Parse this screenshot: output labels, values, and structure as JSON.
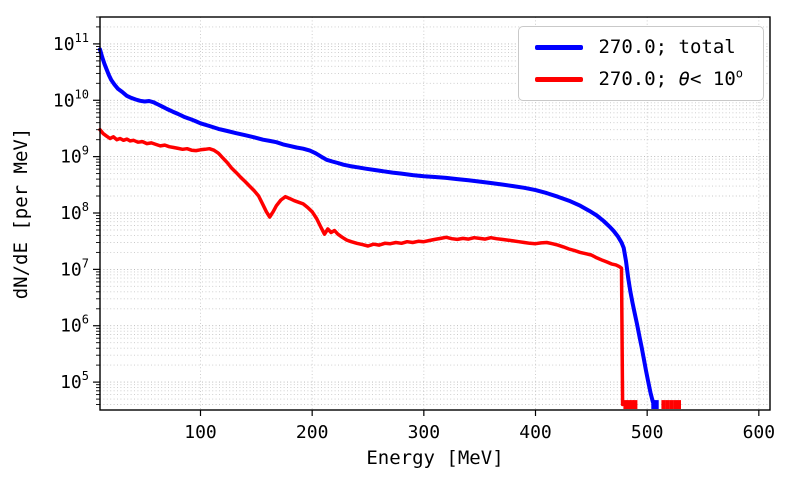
{
  "chart_data": {
    "type": "line",
    "title": "",
    "xlabel": "Energy [MeV]",
    "ylabel": "dN/dE [per MeV]",
    "yscale": "log",
    "xlim": [
      10,
      610
    ],
    "ylim": [
      32000.0,
      300000000000.0
    ],
    "x_ticks": [
      100,
      200,
      300,
      400,
      500,
      600
    ],
    "y_tick_exponents": [
      5,
      6,
      7,
      8,
      9,
      10,
      11
    ],
    "grid": {
      "which": "both",
      "style": "dotted",
      "color": "#c9c9c9"
    },
    "floor_spike_top": 48000.0,
    "legend": {
      "position": "upper right",
      "entries": [
        {
          "label": "270.0; total"
        },
        {
          "prefix": "270.0; ",
          "theta": "θ",
          "mid": "< 10",
          "sup": "o"
        }
      ]
    },
    "series": [
      {
        "name": "270.0; total",
        "color": "#0000ff",
        "linewidth": 4,
        "floor_spikes": [
          505.5,
          508.5
        ],
        "points": [
          [
            10,
            80000000000.0
          ],
          [
            12,
            58000000000.0
          ],
          [
            14,
            44000000000.0
          ],
          [
            16,
            35000000000.0
          ],
          [
            18,
            28000000000.0
          ],
          [
            20,
            23000000000.0
          ],
          [
            23,
            19000000000.0
          ],
          [
            26,
            16000000000.0
          ],
          [
            30,
            14000000000.0
          ],
          [
            34,
            12000000000.0
          ],
          [
            38,
            11000000000.0
          ],
          [
            42,
            10300000000.0
          ],
          [
            46,
            9800000000.0
          ],
          [
            50,
            9500000000.0
          ],
          [
            54,
            9700000000.0
          ],
          [
            58,
            9200000000.0
          ],
          [
            62,
            8400000000.0
          ],
          [
            66,
            7700000000.0
          ],
          [
            70,
            7000000000.0
          ],
          [
            75,
            6300000000.0
          ],
          [
            80,
            5700000000.0
          ],
          [
            85,
            5100000000.0
          ],
          [
            90,
            4700000000.0
          ],
          [
            95,
            4300000000.0
          ],
          [
            100,
            3900000000.0
          ],
          [
            108,
            3500000000.0
          ],
          [
            116,
            3100000000.0
          ],
          [
            124,
            2850000000.0
          ],
          [
            132,
            2600000000.0
          ],
          [
            140,
            2400000000.0
          ],
          [
            148,
            2200000000.0
          ],
          [
            156,
            2000000000.0
          ],
          [
            162,
            1900000000.0
          ],
          [
            168,
            1800000000.0
          ],
          [
            174,
            1650000000.0
          ],
          [
            180,
            1550000000.0
          ],
          [
            186,
            1450000000.0
          ],
          [
            192,
            1380000000.0
          ],
          [
            198,
            1280000000.0
          ],
          [
            203,
            1150000000.0
          ],
          [
            208,
            1000000000.0
          ],
          [
            213,
            880000000.0
          ],
          [
            218,
            820000000.0
          ],
          [
            223,
            770000000.0
          ],
          [
            228,
            720000000.0
          ],
          [
            234,
            680000000.0
          ],
          [
            240,
            650000000.0
          ],
          [
            248,
            610000000.0
          ],
          [
            256,
            580000000.0
          ],
          [
            264,
            550000000.0
          ],
          [
            272,
            520000000.0
          ],
          [
            280,
            500000000.0
          ],
          [
            290,
            470000000.0
          ],
          [
            300,
            450000000.0
          ],
          [
            310,
            435000000.0
          ],
          [
            320,
            420000000.0
          ],
          [
            330,
            400000000.0
          ],
          [
            340,
            380000000.0
          ],
          [
            350,
            360000000.0
          ],
          [
            360,
            340000000.0
          ],
          [
            370,
            320000000.0
          ],
          [
            380,
            300000000.0
          ],
          [
            390,
            280000000.0
          ],
          [
            400,
            255000000.0
          ],
          [
            410,
            225000000.0
          ],
          [
            420,
            195000000.0
          ],
          [
            430,
            165000000.0
          ],
          [
            440,
            135000000.0
          ],
          [
            448,
            110000000.0
          ],
          [
            455,
            90000000.0
          ],
          [
            461,
            72000000.0
          ],
          [
            466,
            58000000.0
          ],
          [
            470,
            48000000.0
          ],
          [
            474,
            38000000.0
          ],
          [
            477,
            30000000.0
          ],
          [
            479,
            24000000.0
          ],
          [
            481,
            14000000.0
          ],
          [
            483,
            7000000.0
          ],
          [
            485,
            4000000.0
          ],
          [
            487,
            2500000.0
          ],
          [
            489,
            1600000.0
          ],
          [
            491,
            1050000.0
          ],
          [
            493,
            650000.0
          ],
          [
            495,
            420000.0
          ],
          [
            497,
            260000.0
          ],
          [
            499,
            160000.0
          ],
          [
            501,
            100000.0
          ],
          [
            503,
            65000.0
          ],
          [
            505,
            45000.0
          ]
        ]
      },
      {
        "name": "270.0; θ< 10^o",
        "color": "#ff0000",
        "linewidth": 3.5,
        "floor_spikes": [
          480.5,
          483.5,
          486.5,
          489.5,
          514.5,
          518,
          521.5,
          525,
          528.5
        ],
        "points": [
          [
            10,
            3000000000.0
          ],
          [
            13,
            2550000000.0
          ],
          [
            16,
            2300000000.0
          ],
          [
            19,
            2100000000.0
          ],
          [
            22,
            2250000000.0
          ],
          [
            25,
            2000000000.0
          ],
          [
            28,
            2100000000.0
          ],
          [
            31,
            1950000000.0
          ],
          [
            34,
            2050000000.0
          ],
          [
            37,
            1900000000.0
          ],
          [
            40,
            1950000000.0
          ],
          [
            44,
            1800000000.0
          ],
          [
            48,
            1850000000.0
          ],
          [
            52,
            1700000000.0
          ],
          [
            56,
            1750000000.0
          ],
          [
            60,
            1650000000.0
          ],
          [
            64,
            1550000000.0
          ],
          [
            68,
            1600000000.0
          ],
          [
            72,
            1500000000.0
          ],
          [
            76,
            1450000000.0
          ],
          [
            80,
            1400000000.0
          ],
          [
            84,
            1350000000.0
          ],
          [
            88,
            1380000000.0
          ],
          [
            92,
            1300000000.0
          ],
          [
            96,
            1280000000.0
          ],
          [
            100,
            1320000000.0
          ],
          [
            104,
            1350000000.0
          ],
          [
            108,
            1380000000.0
          ],
          [
            112,
            1300000000.0
          ],
          [
            116,
            1150000000.0
          ],
          [
            120,
            950000000.0
          ],
          [
            124,
            780000000.0
          ],
          [
            128,
            620000000.0
          ],
          [
            132,
            520000000.0
          ],
          [
            136,
            430000000.0
          ],
          [
            140,
            360000000.0
          ],
          [
            144,
            300000000.0
          ],
          [
            148,
            250000000.0
          ],
          [
            152,
            200000000.0
          ],
          [
            156,
            140000000.0
          ],
          [
            159,
            105000000.0
          ],
          [
            162,
            85000000.0
          ],
          [
            165,
            105000000.0
          ],
          [
            168,
            135000000.0
          ],
          [
            172,
            170000000.0
          ],
          [
            176,
            195000000.0
          ],
          [
            180,
            180000000.0
          ],
          [
            184,
            165000000.0
          ],
          [
            188,
            155000000.0
          ],
          [
            192,
            145000000.0
          ],
          [
            196,
            125000000.0
          ],
          [
            200,
            105000000.0
          ],
          [
            204,
            80000000.0
          ],
          [
            208,
            55000000.0
          ],
          [
            211,
            42000000.0
          ],
          [
            214,
            52000000.0
          ],
          [
            217,
            45000000.0
          ],
          [
            220,
            49000000.0
          ],
          [
            223,
            42000000.0
          ],
          [
            227,
            37000000.0
          ],
          [
            231,
            33000000.0
          ],
          [
            235,
            31000000.0
          ],
          [
            240,
            29000000.0
          ],
          [
            245,
            27500000.0
          ],
          [
            250,
            26000000.0
          ],
          [
            255,
            28000000.0
          ],
          [
            260,
            27000000.0
          ],
          [
            265,
            29000000.0
          ],
          [
            270,
            28500000.0
          ],
          [
            275,
            30000000.0
          ],
          [
            280,
            29000000.0
          ],
          [
            285,
            31000000.0
          ],
          [
            290,
            30000000.0
          ],
          [
            295,
            31500000.0
          ],
          [
            300,
            31000000.0
          ],
          [
            305,
            32500000.0
          ],
          [
            310,
            34000000.0
          ],
          [
            315,
            35500000.0
          ],
          [
            320,
            37000000.0
          ],
          [
            325,
            35000000.0
          ],
          [
            330,
            34000000.0
          ],
          [
            335,
            35500000.0
          ],
          [
            340,
            34500000.0
          ],
          [
            345,
            36500000.0
          ],
          [
            350,
            35500000.0
          ],
          [
            355,
            34500000.0
          ],
          [
            360,
            36500000.0
          ],
          [
            365,
            35000000.0
          ],
          [
            370,
            34000000.0
          ],
          [
            375,
            33000000.0
          ],
          [
            380,
            32000000.0
          ],
          [
            385,
            31000000.0
          ],
          [
            390,
            30000000.0
          ],
          [
            395,
            29000000.0
          ],
          [
            400,
            28500000.0
          ],
          [
            405,
            29500000.0
          ],
          [
            410,
            30000000.0
          ],
          [
            415,
            28500000.0
          ],
          [
            420,
            27000000.0
          ],
          [
            425,
            25000000.0
          ],
          [
            430,
            23000000.0
          ],
          [
            435,
            21500000.0
          ],
          [
            440,
            20000000.0
          ],
          [
            445,
            19000000.0
          ],
          [
            450,
            18000000.0
          ],
          [
            455,
            16000000.0
          ],
          [
            460,
            14500000.0
          ],
          [
            464,
            13500000.0
          ],
          [
            468,
            12500000.0
          ],
          [
            472,
            12000000.0
          ],
          [
            475,
            11200000.0
          ],
          [
            477,
            10500000.0
          ],
          [
            478,
            40000.0
          ]
        ]
      }
    ]
  }
}
